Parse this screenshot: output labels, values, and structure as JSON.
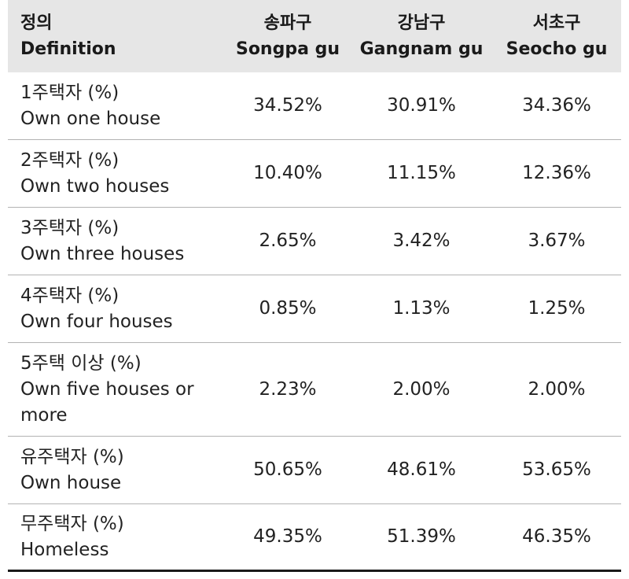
{
  "header": {
    "definition_ko": "정의",
    "definition_en": "Definition",
    "columns": [
      {
        "ko": "송파구",
        "en": "Songpa gu"
      },
      {
        "ko": "강남구",
        "en": "Gangnam gu"
      },
      {
        "ko": "서초구",
        "en": "Seocho gu"
      }
    ]
  },
  "rows": [
    {
      "ko": "1주택자 (%)",
      "en": [
        "Own one house"
      ],
      "values": [
        "34.52%",
        "30.91%",
        "34.36%"
      ]
    },
    {
      "ko": "2주택자 (%)",
      "en": [
        "Own two houses"
      ],
      "values": [
        "10.40%",
        "11.15%",
        "12.36%"
      ]
    },
    {
      "ko": "3주택자 (%)",
      "en": [
        "Own three houses"
      ],
      "values": [
        "2.65%",
        "3.42%",
        "3.67%"
      ]
    },
    {
      "ko": "4주택자 (%)",
      "en": [
        "Own four houses"
      ],
      "values": [
        "0.85%",
        "1.13%",
        "1.25%"
      ]
    },
    {
      "ko": "5주택 이상 (%)",
      "en": [
        "Own five houses or",
        "more"
      ],
      "values": [
        "2.23%",
        "2.00%",
        "2.00%"
      ]
    },
    {
      "ko": "유주택자 (%)",
      "en": [
        "Own house"
      ],
      "values": [
        "50.65%",
        "48.61%",
        "53.65%"
      ]
    },
    {
      "ko": "무주택자 (%)",
      "en": [
        "Homeless"
      ],
      "values": [
        "49.35%",
        "51.39%",
        "46.35%"
      ]
    }
  ]
}
